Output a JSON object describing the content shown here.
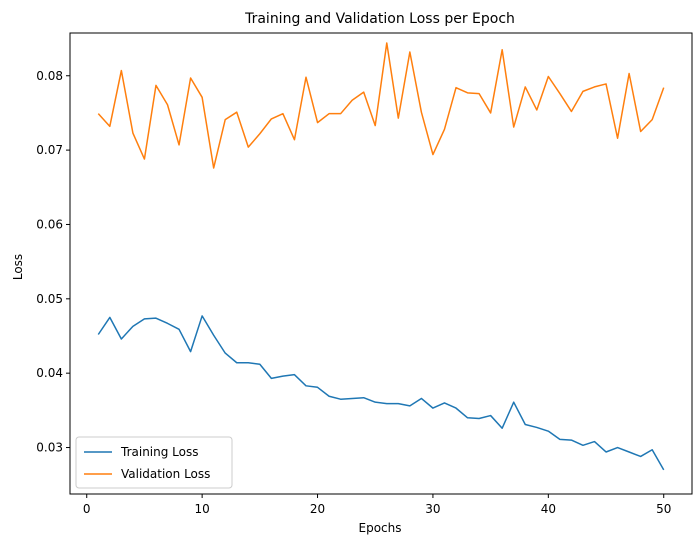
{
  "chart_data": {
    "type": "line",
    "title": "Training and Validation Loss per Epoch",
    "xlabel": "Epochs",
    "ylabel": "Loss",
    "xlim": [
      -1.45,
      52.45
    ],
    "ylim": [
      0.02375,
      0.08575
    ],
    "xticks": [
      0,
      10,
      20,
      30,
      40,
      50
    ],
    "yticks": [
      0.03,
      0.04,
      0.05,
      0.06,
      0.07,
      0.08
    ],
    "xtick_labels": [
      "0",
      "10",
      "20",
      "30",
      "40",
      "50"
    ],
    "ytick_labels": [
      "0.03",
      "0.04",
      "0.05",
      "0.06",
      "0.07",
      "0.08"
    ],
    "grid": false,
    "legend_position": "lower-left",
    "x": [
      1,
      2,
      3,
      4,
      5,
      6,
      7,
      8,
      9,
      10,
      11,
      12,
      13,
      14,
      15,
      16,
      17,
      18,
      19,
      20,
      21,
      22,
      23,
      24,
      25,
      26,
      27,
      28,
      29,
      30,
      31,
      32,
      33,
      34,
      35,
      36,
      37,
      38,
      39,
      40,
      41,
      42,
      43,
      44,
      45,
      46,
      47,
      48,
      49,
      50
    ],
    "series": [
      {
        "name": "Training Loss",
        "color": "#1f77b4",
        "values": [
          0.0452,
          0.0475,
          0.0446,
          0.0463,
          0.0473,
          0.0474,
          0.0467,
          0.0459,
          0.0429,
          0.0477,
          0.0451,
          0.0427,
          0.0414,
          0.0414,
          0.0412,
          0.0393,
          0.0396,
          0.0398,
          0.0383,
          0.0381,
          0.0369,
          0.0365,
          0.0366,
          0.0367,
          0.0361,
          0.0359,
          0.0359,
          0.0356,
          0.0366,
          0.0353,
          0.036,
          0.0353,
          0.034,
          0.0339,
          0.0343,
          0.0326,
          0.0361,
          0.0331,
          0.0327,
          0.0322,
          0.0311,
          0.031,
          0.0303,
          0.0308,
          0.0294,
          0.03,
          0.0294,
          0.0288,
          0.0297,
          0.027
        ]
      },
      {
        "name": "Validation Loss",
        "color": "#ff7f0e",
        "values": [
          0.0749,
          0.0732,
          0.0807,
          0.0723,
          0.0688,
          0.0787,
          0.0761,
          0.0707,
          0.0797,
          0.0771,
          0.0676,
          0.0741,
          0.0751,
          0.0704,
          0.0722,
          0.0742,
          0.0749,
          0.0714,
          0.0798,
          0.0737,
          0.0749,
          0.0749,
          0.0767,
          0.0778,
          0.0733,
          0.0844,
          0.0743,
          0.0832,
          0.0751,
          0.0694,
          0.0728,
          0.0784,
          0.0777,
          0.0776,
          0.075,
          0.0835,
          0.0731,
          0.0785,
          0.0754,
          0.0799,
          0.0776,
          0.0752,
          0.0779,
          0.0785,
          0.0789,
          0.0716,
          0.0803,
          0.0725,
          0.0741,
          0.0784
        ]
      }
    ]
  }
}
